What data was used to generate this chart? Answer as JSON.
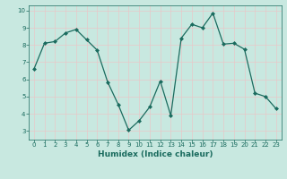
{
  "x": [
    0,
    1,
    2,
    3,
    4,
    5,
    6,
    7,
    8,
    9,
    10,
    11,
    12,
    13,
    14,
    15,
    16,
    17,
    18,
    19,
    20,
    21,
    22,
    23
  ],
  "y": [
    6.6,
    8.1,
    8.2,
    8.7,
    8.9,
    8.3,
    7.7,
    5.85,
    4.55,
    3.05,
    3.6,
    4.4,
    5.9,
    3.9,
    8.4,
    9.2,
    9.0,
    9.85,
    8.05,
    8.1,
    7.75,
    5.2,
    5.0,
    4.3
  ],
  "line_color": "#1a6b5e",
  "marker": "D",
  "marker_size": 2.0,
  "line_width": 0.9,
  "xlabel": "Humidex (Indice chaleur)",
  "xlim": [
    -0.5,
    23.5
  ],
  "ylim": [
    2.5,
    10.3
  ],
  "yticks": [
    3,
    4,
    5,
    6,
    7,
    8,
    9,
    10
  ],
  "xticks": [
    0,
    1,
    2,
    3,
    4,
    5,
    6,
    7,
    8,
    9,
    10,
    11,
    12,
    13,
    14,
    15,
    16,
    17,
    18,
    19,
    20,
    21,
    22,
    23
  ],
  "bg_color": "#c8e8e0",
  "plot_bg_color": "#c8e8e0",
  "grid_color": "#e8c8c8",
  "grid_linewidth": 0.5,
  "axis_color": "#1a6b5e",
  "label_color": "#1a6b5e",
  "tick_fontsize": 5.0,
  "xlabel_fontsize": 6.5,
  "xlabel_fontweight": "bold"
}
